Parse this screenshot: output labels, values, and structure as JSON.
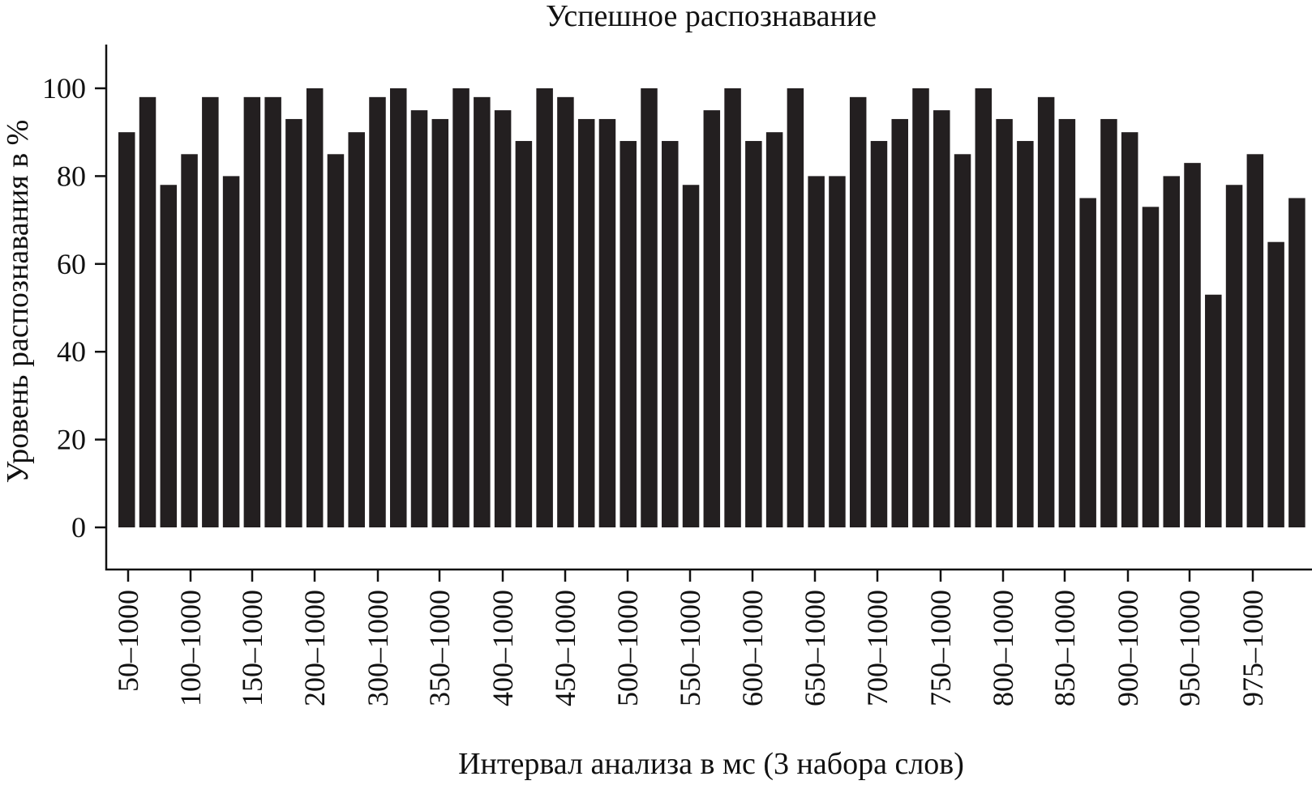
{
  "chart_data": {
    "type": "bar",
    "title": "Успешное распознавание",
    "xlabel": "Интервал анализа в мс (3 набора слов)",
    "ylabel": "Уровень распознавания в %",
    "ylim": [
      -10,
      110
    ],
    "yticks": [
      0,
      20,
      40,
      60,
      80,
      100
    ],
    "grid": false,
    "legend": "none",
    "bar_color": "#231f20",
    "categories": [
      "50–1000",
      "",
      "",
      "100–1000",
      "",
      "",
      "150–1000",
      "",
      "",
      "200–1000",
      "",
      "",
      "300–1000",
      "",
      "",
      "350–1000",
      "",
      "",
      "400–1000",
      "",
      "",
      "450–1000",
      "",
      "",
      "500–1000",
      "",
      "",
      "550–1000",
      "",
      "",
      "600–1000",
      "",
      "",
      "650–1000",
      "",
      "",
      "700–1000",
      "",
      "",
      "750–1000",
      "",
      "",
      "800–1000",
      "",
      "",
      "850–1000",
      "",
      "",
      "900–1000",
      "",
      "",
      "950–1000",
      "",
      "",
      "975–1000",
      "",
      ""
    ],
    "values": [
      90,
      98,
      78,
      85,
      98,
      80,
      98,
      98,
      93,
      100,
      85,
      90,
      98,
      100,
      95,
      93,
      100,
      98,
      95,
      88,
      100,
      98,
      93,
      93,
      88,
      100,
      88,
      78,
      95,
      100,
      88,
      90,
      100,
      80,
      80,
      98,
      88,
      93,
      100,
      95,
      85,
      100,
      93,
      88,
      98,
      93,
      75,
      93,
      90,
      73,
      80,
      83,
      53,
      78,
      85,
      65,
      75
    ],
    "tick_labels": [
      "50–1000",
      "100–1000",
      "150–1000",
      "200–1000",
      "300–1000",
      "350–1000",
      "400–1000",
      "450–1000",
      "500–1000",
      "550–1000",
      "600–1000",
      "650–1000",
      "700–1000",
      "750–1000",
      "800–1000",
      "850–1000",
      "900–1000",
      "950–1000",
      "975–1000"
    ]
  }
}
